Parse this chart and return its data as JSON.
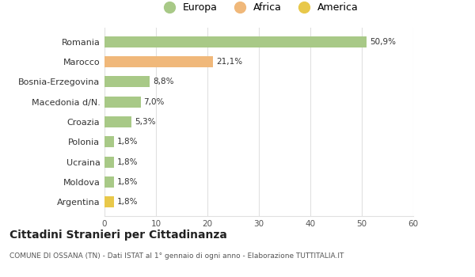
{
  "categories": [
    "Romania",
    "Marocco",
    "Bosnia-Erzegovina",
    "Macedonia d/N.",
    "Croazia",
    "Polonia",
    "Ucraina",
    "Moldova",
    "Argentina"
  ],
  "values": [
    50.9,
    21.1,
    8.8,
    7.0,
    5.3,
    1.8,
    1.8,
    1.8,
    1.8
  ],
  "labels": [
    "50,9%",
    "21,1%",
    "8,8%",
    "7,0%",
    "5,3%",
    "1,8%",
    "1,8%",
    "1,8%",
    "1,8%"
  ],
  "colors": [
    "#a8c987",
    "#f0b87a",
    "#a8c987",
    "#a8c987",
    "#a8c987",
    "#a8c987",
    "#a8c987",
    "#a8c987",
    "#e8c84a"
  ],
  "legend": [
    {
      "label": "Europa",
      "color": "#a8c987"
    },
    {
      "label": "Africa",
      "color": "#f0b87a"
    },
    {
      "label": "America",
      "color": "#e8c84a"
    }
  ],
  "xlim": [
    0,
    60
  ],
  "xticks": [
    0,
    10,
    20,
    30,
    40,
    50,
    60
  ],
  "title": "Cittadini Stranieri per Cittadinanza",
  "subtitle": "COMUNE DI OSSANA (TN) - Dati ISTAT al 1° gennaio di ogni anno - Elaborazione TUTTITALIA.IT",
  "background_color": "#ffffff",
  "bar_height": 0.55,
  "grid_color": "#e0e0e0"
}
